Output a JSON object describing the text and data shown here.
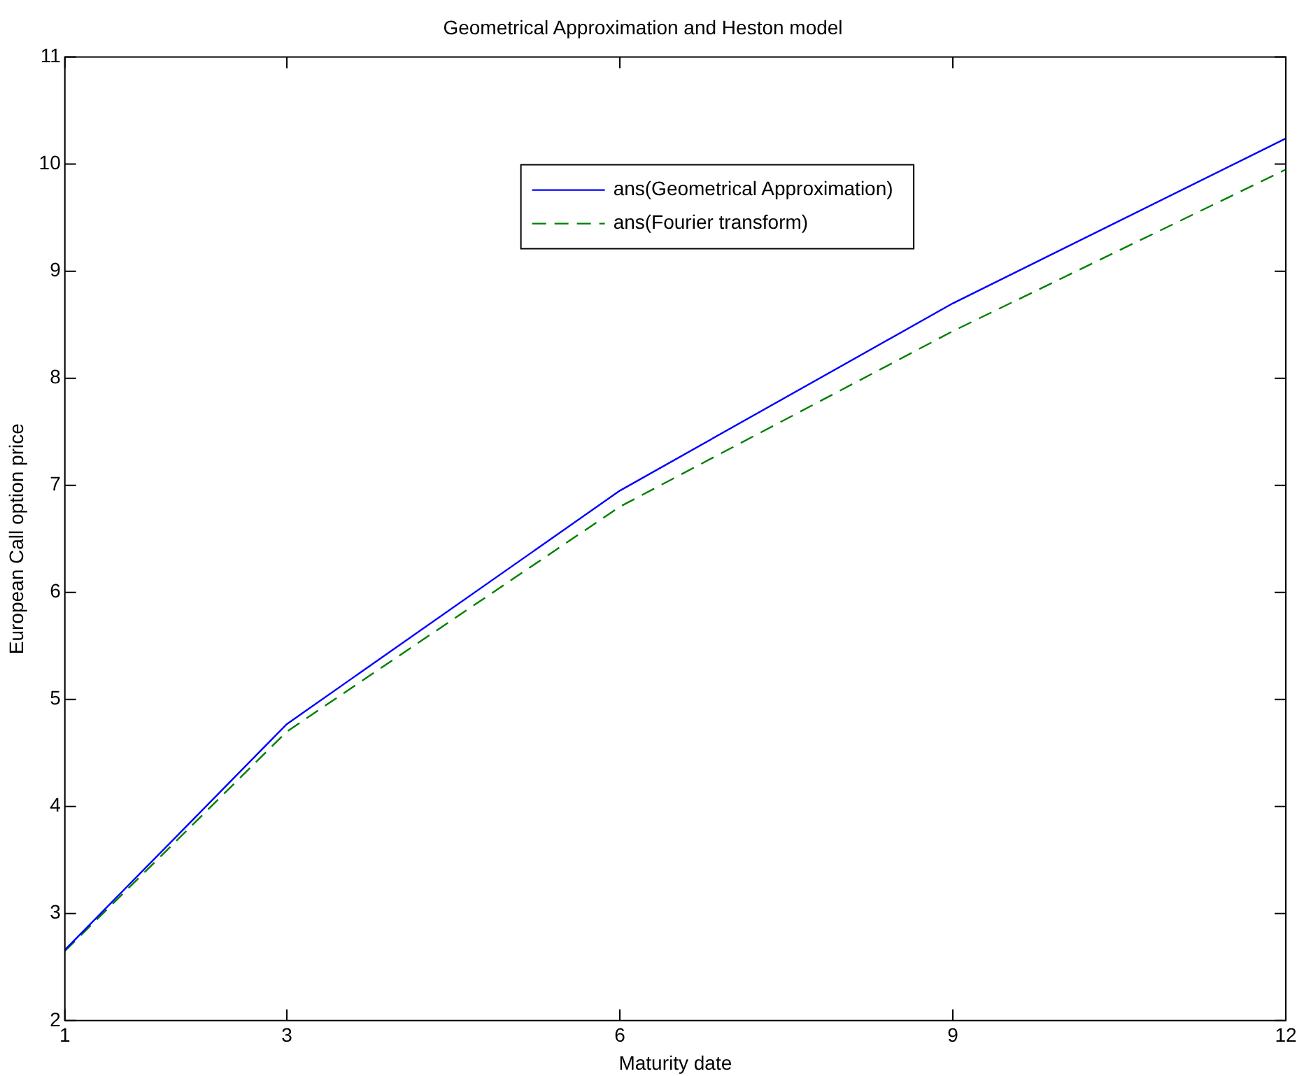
{
  "chart_data": {
    "type": "line",
    "title": "Geometrical Approximation and Heston model",
    "xlabel": "Maturity date",
    "ylabel": "European Call option price",
    "x": [
      1,
      3,
      6,
      9,
      12
    ],
    "series": [
      {
        "name": "ans(Geometrical Approximation)",
        "color": "#0000ff",
        "values": [
          2.66,
          4.77,
          6.95,
          8.7,
          10.24
        ],
        "line_style": "solid"
      },
      {
        "name": "ans(Fourier transform)",
        "color": "#008000",
        "values": [
          2.65,
          4.7,
          6.8,
          8.44,
          9.95
        ],
        "line_style": "dashed"
      }
    ],
    "xlim": [
      1,
      12
    ],
    "xticks": [
      1,
      3,
      6,
      9,
      12
    ],
    "ylim": [
      2,
      11
    ],
    "yticks": [
      2,
      3,
      4,
      5,
      6,
      7,
      8,
      9,
      10,
      11
    ],
    "grid": false,
    "legend": "top",
    "marker": "none"
  }
}
